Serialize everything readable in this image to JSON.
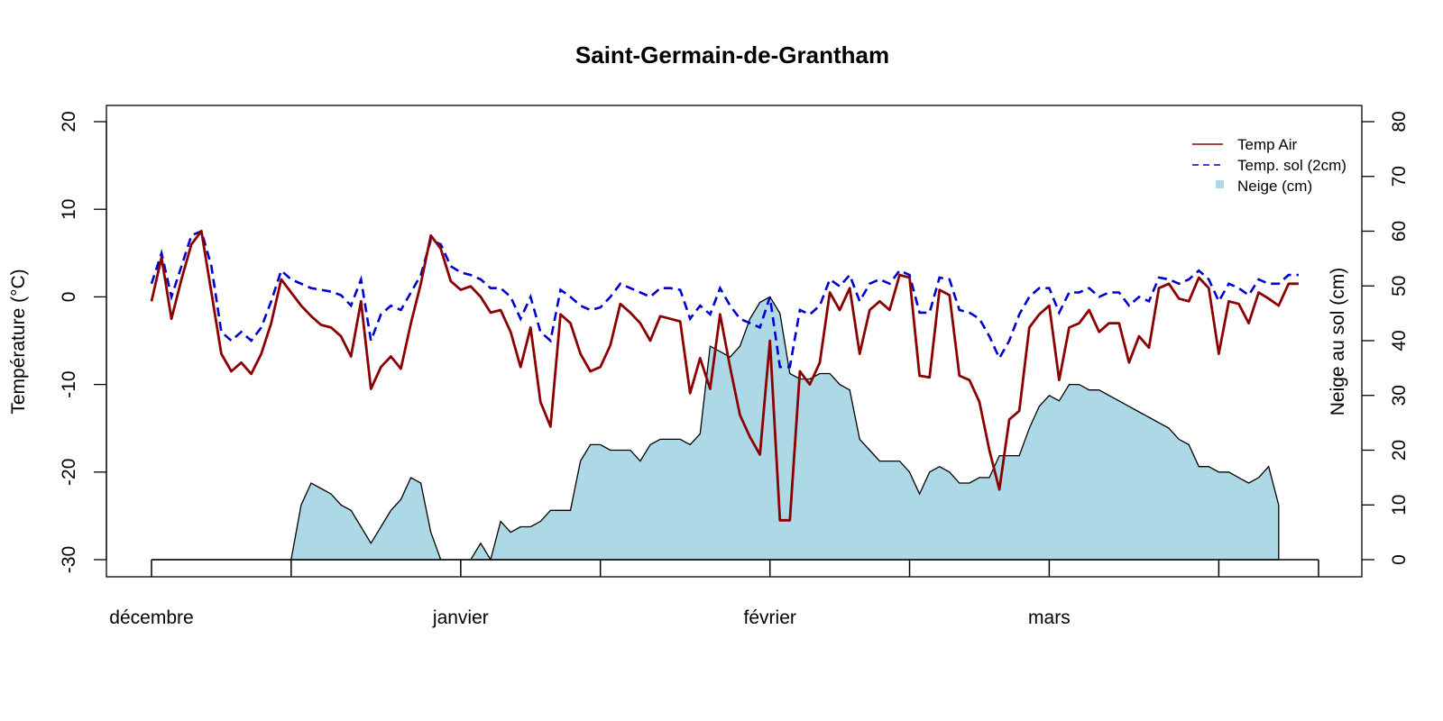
{
  "chart_data": {
    "type": "line",
    "title": "Saint-Germain-de-Grantham",
    "xlabel": "",
    "ylabel": "Température (°C)",
    "ylabel_right": "Neige au sol (cm)",
    "ylim": [
      -30,
      20
    ],
    "ylim_right": [
      0,
      80
    ],
    "yticks": [
      -30,
      -20,
      -10,
      0,
      10,
      20
    ],
    "yticks_right": [
      0,
      10,
      20,
      30,
      40,
      50,
      60,
      70,
      80
    ],
    "month_labels": [
      {
        "label": "décembre",
        "day": 0
      },
      {
        "label": "janvier",
        "day": 31
      },
      {
        "label": "février",
        "day": 62
      },
      {
        "label": "mars",
        "day": 90
      }
    ],
    "month_ticks": [
      0,
      14,
      31,
      45,
      62,
      76,
      90,
      107,
      117
    ],
    "x_range": [
      0,
      117
    ],
    "grid": false,
    "legend_position": "top-right",
    "colors": {
      "air": "#8b0000",
      "soil": "#0000cd",
      "snow": "#add8e6"
    },
    "series": [
      {
        "name": "Temp Air",
        "style": "solid",
        "values": [
          -0.5,
          4.5,
          -2.5,
          2.0,
          6.0,
          7.5,
          0.5,
          -6.5,
          -8.5,
          -7.5,
          -8.8,
          -6.5,
          -3.0,
          2.0,
          0.5,
          -1.0,
          -2.2,
          -3.2,
          -3.5,
          -4.5,
          -6.8,
          -0.5,
          -10.5,
          -8.0,
          -6.8,
          -8.2,
          -3.0,
          1.5,
          7.0,
          5.5,
          1.8,
          0.8,
          1.2,
          0.0,
          -1.8,
          -1.5,
          -4.0,
          -8.0,
          -3.5,
          -12.0,
          -14.8,
          -2.0,
          -3.0,
          -6.5,
          -8.5,
          -8.0,
          -5.5,
          -0.8,
          -1.8,
          -3.0,
          -5.0,
          -2.2,
          -2.5,
          -2.8,
          -11.0,
          -7.0,
          -10.5,
          -2.0,
          -8.0,
          -13.5,
          -16.0,
          -18.0,
          -5.0,
          -25.5,
          -25.5,
          -8.5,
          -10.0,
          -7.5,
          0.5,
          -1.5,
          1.0,
          -6.5,
          -1.5,
          -0.5,
          -1.5,
          2.5,
          2.2,
          -9.0,
          -9.2,
          0.8,
          0.2,
          -9.0,
          -9.5,
          -12.0,
          -17.5,
          -22.0,
          -14.0,
          -13.0,
          -3.5,
          -2.0,
          -1.0,
          -9.5,
          -3.5,
          -3.0,
          -1.5,
          -4.0,
          -3.0,
          -3.0,
          -7.5,
          -4.5,
          -5.8,
          1.0,
          1.5,
          -0.2,
          -0.5,
          2.2,
          1.0,
          -6.5,
          -0.5,
          -0.8,
          -3.0,
          0.5,
          -0.2,
          -1.0,
          1.5,
          1.5
        ],
        "start_day": 0
      },
      {
        "name": "Temp. sol (2cm)",
        "style": "dashed",
        "values": [
          1.5,
          5.0,
          0.0,
          3.5,
          7.0,
          7.5,
          3.5,
          -4.0,
          -5.0,
          -4.0,
          -5.0,
          -3.5,
          -0.5,
          3.0,
          2.0,
          1.5,
          1.0,
          0.8,
          0.6,
          0.2,
          -1.0,
          2.0,
          -5.0,
          -2.0,
          -1.0,
          -1.5,
          0.5,
          2.5,
          6.5,
          6.0,
          3.5,
          2.8,
          2.5,
          2.0,
          1.0,
          1.0,
          0.0,
          -2.5,
          0.0,
          -4.0,
          -5.0,
          0.8,
          0.0,
          -1.0,
          -1.5,
          -1.2,
          0.0,
          1.5,
          1.0,
          0.5,
          0.0,
          1.0,
          1.0,
          0.8,
          -2.5,
          -1.0,
          -2.0,
          1.0,
          -1.0,
          -2.5,
          -3.0,
          -3.5,
          0.0,
          -8.0,
          -8.0,
          -1.5,
          -2.0,
          -1.0,
          2.0,
          1.2,
          2.5,
          -0.5,
          1.5,
          2.0,
          1.5,
          3.0,
          2.5,
          -1.8,
          -1.8,
          2.2,
          2.0,
          -1.5,
          -1.8,
          -2.5,
          -4.5,
          -7.0,
          -5.0,
          -2.0,
          0.0,
          1.0,
          1.0,
          -1.8,
          0.5,
          0.5,
          1.0,
          0.0,
          0.5,
          0.5,
          -1.0,
          0.0,
          -0.5,
          2.2,
          2.0,
          1.5,
          2.0,
          3.0,
          2.0,
          -0.5,
          1.5,
          1.0,
          0.2,
          2.0,
          1.5,
          1.5,
          2.5,
          2.5
        ],
        "start_day": 0
      },
      {
        "name": "Neige (cm)",
        "style": "area",
        "axis": "right",
        "values": [
          0,
          0,
          0,
          0,
          0,
          0,
          0,
          0,
          0,
          0,
          0,
          0,
          0,
          0,
          0,
          10,
          14,
          13,
          12,
          10,
          9,
          6,
          3,
          6,
          9,
          11,
          15,
          14,
          5,
          0,
          0,
          0,
          0,
          3,
          0,
          7,
          5,
          6,
          6,
          7,
          9,
          9,
          9,
          18,
          21,
          21,
          20,
          20,
          20,
          18,
          21,
          22,
          22,
          22,
          21,
          23,
          39,
          38,
          37,
          39,
          44,
          47,
          48,
          45,
          34,
          33,
          33,
          34,
          34,
          32,
          31,
          22,
          20,
          18,
          18,
          18,
          16,
          12,
          16,
          17,
          16,
          14,
          14,
          15,
          15,
          19,
          19,
          19,
          24,
          28,
          30,
          29,
          32,
          32,
          31,
          31,
          30,
          29,
          28,
          27,
          26,
          25,
          24,
          22,
          21,
          17,
          17,
          16,
          16,
          15,
          14,
          15,
          17,
          10
        ],
        "start_day": 0
      }
    ]
  }
}
